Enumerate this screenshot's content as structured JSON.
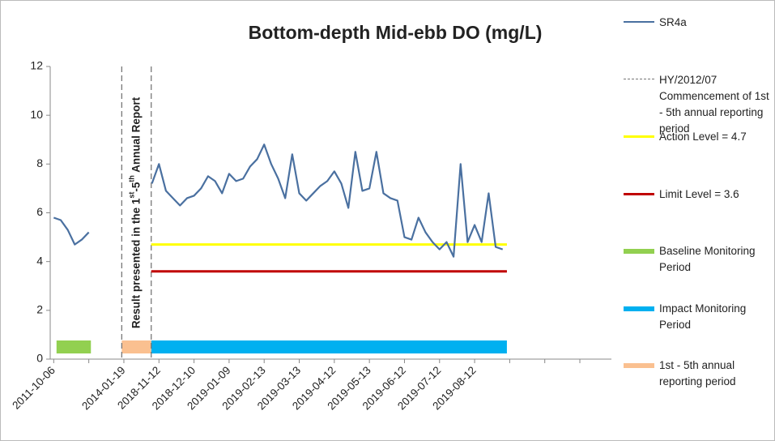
{
  "chart_data": {
    "type": "line",
    "title": "Bottom-depth Mid-ebb DO (mg/L)",
    "categories": [
      "2011-10-06",
      null,
      null,
      null,
      null,
      null,
      null,
      null,
      null,
      null,
      "2014-01-19",
      null,
      null,
      null,
      null,
      "2018-11-12",
      null,
      null,
      null,
      null,
      "2018-12-10",
      null,
      null,
      null,
      null,
      "2019-01-09",
      null,
      null,
      null,
      null,
      "2019-02-13",
      null,
      null,
      null,
      null,
      "2019-03-13",
      null,
      null,
      null,
      null,
      "2019-04-12",
      null,
      null,
      null,
      null,
      "2019-05-13",
      null,
      null,
      null,
      null,
      "2019-06-12",
      null,
      null,
      null,
      null,
      "2019-07-12",
      null,
      null,
      null,
      null,
      "2019-08-12",
      null,
      null,
      null,
      null,
      null,
      null,
      null,
      null,
      null,
      null,
      null,
      null,
      null,
      null,
      null,
      null,
      null,
      null,
      null
    ],
    "series": [
      {
        "name": "SR4a",
        "color": "#4a70a0",
        "values": [
          5.8,
          5.7,
          5.3,
          4.7,
          4.9,
          5.2,
          null,
          null,
          null,
          null,
          null,
          null,
          null,
          null,
          7.2,
          8.0,
          6.9,
          6.6,
          6.3,
          6.6,
          6.7,
          7.0,
          7.5,
          7.3,
          6.8,
          7.6,
          7.3,
          7.4,
          7.9,
          8.2,
          8.8,
          8.0,
          7.4,
          6.6,
          8.4,
          6.8,
          6.5,
          6.8,
          7.1,
          7.3,
          7.7,
          7.2,
          6.2,
          8.5,
          6.9,
          7.0,
          8.5,
          6.8,
          6.6,
          6.5,
          5.0,
          4.9,
          5.8,
          5.2,
          4.8,
          4.5,
          4.8,
          4.2,
          8.0,
          4.8,
          5.5,
          4.8,
          6.8,
          4.6,
          4.5,
          null,
          null,
          null,
          null,
          null,
          null,
          null,
          null,
          null,
          null,
          null,
          null,
          null,
          null,
          null
        ]
      }
    ],
    "dividers": {
      "name": "HY/2012/07 Commencement of 1st - 5th annual reporting period",
      "color": "#777777",
      "at": [
        9.7,
        13.9
      ]
    },
    "reference_lines": [
      {
        "name": "Action Level = 4.7",
        "color": "#ffff00",
        "value": 4.7,
        "span": [
          13.9,
          64.6
        ]
      },
      {
        "name": "Limit Level = 3.6",
        "color": "#c00000",
        "value": 3.6,
        "span": [
          13.9,
          64.6
        ]
      }
    ],
    "period_bars": [
      {
        "name": "Baseline Monitoring Period",
        "color": "#92d050",
        "value": 0.5,
        "span": [
          0.4,
          5.3
        ]
      },
      {
        "name": "Impact Monitoring Period",
        "color": "#00b0f0",
        "value": 0.5,
        "span": [
          13.9,
          64.6
        ]
      },
      {
        "name": "1st - 5th annual reporting period",
        "color": "#fac090",
        "value": 0.5,
        "span": [
          9.7,
          13.9
        ]
      }
    ],
    "annotation_parts": [
      {
        "text": "Result presented in the 1"
      },
      {
        "text": "st",
        "sup": true
      },
      {
        "text": "-5"
      },
      {
        "text": "th",
        "sup": true
      },
      {
        "text": " Annual Report"
      }
    ],
    "ylim": [
      0,
      12
    ],
    "yticks": [
      0,
      2,
      4,
      6,
      8,
      10,
      12
    ],
    "grid": false,
    "legend": "right"
  }
}
